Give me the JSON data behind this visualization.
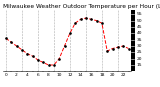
{
  "title": "Milwaukee Weather Outdoor Temperature per Hour (Last 24 Hours)",
  "hours": [
    0,
    1,
    2,
    3,
    4,
    5,
    6,
    7,
    8,
    9,
    10,
    11,
    12,
    13,
    14,
    15,
    16,
    17,
    18,
    19,
    20,
    21,
    22,
    23
  ],
  "temps": [
    36,
    33,
    30,
    27,
    24,
    22,
    19,
    17,
    15,
    15,
    20,
    30,
    40,
    48,
    51,
    52,
    51,
    50,
    48,
    26,
    28,
    29,
    30,
    28
  ],
  "line_color": "#ff0000",
  "marker_color": "#000000",
  "bg_color": "#ffffff",
  "grid_color": "#888888",
  "title_color": "#000000",
  "tick_color": "#000000",
  "ylim": [
    10,
    58
  ],
  "yticks": [
    15,
    20,
    25,
    30,
    35,
    40,
    45,
    50,
    55
  ],
  "ytick_labels": [
    "15",
    "20",
    "25",
    "30",
    "35",
    "40",
    "45",
    "50",
    "55"
  ],
  "title_fontsize": 4.2,
  "tick_fontsize": 3.2,
  "right_bar_color": "#000000",
  "right_label_color": "#000000"
}
